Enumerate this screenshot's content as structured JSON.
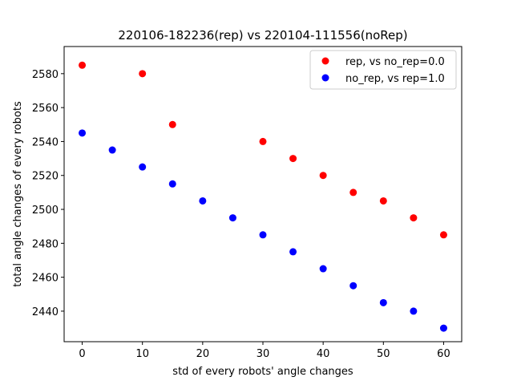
{
  "chart_data": {
    "type": "scatter",
    "title": "220106-182236(rep) vs 220104-111556(noRep)",
    "xlabel": "std of every robots' angle changes",
    "ylabel": "total angle changes of every robots",
    "xlim": [
      -3,
      63
    ],
    "ylim": [
      2422,
      2596
    ],
    "xticks": [
      0,
      10,
      20,
      30,
      40,
      50,
      60
    ],
    "yticks": [
      2440,
      2460,
      2480,
      2500,
      2520,
      2540,
      2560,
      2580
    ],
    "legend_position": "top-right",
    "grid": false,
    "series": [
      {
        "name": "rep, vs no_rep=0.0",
        "color": "#ff0000",
        "points": [
          {
            "x": 0,
            "y": 2585
          },
          {
            "x": 10,
            "y": 2580
          },
          {
            "x": 15,
            "y": 2550
          },
          {
            "x": 30,
            "y": 2540
          },
          {
            "x": 35,
            "y": 2530
          },
          {
            "x": 40,
            "y": 2520
          },
          {
            "x": 45,
            "y": 2510
          },
          {
            "x": 50,
            "y": 2505
          },
          {
            "x": 55,
            "y": 2495
          },
          {
            "x": 60,
            "y": 2485
          }
        ]
      },
      {
        "name": "no_rep, vs rep=1.0",
        "color": "#0000ff",
        "points": [
          {
            "x": 0,
            "y": 2545
          },
          {
            "x": 5,
            "y": 2535
          },
          {
            "x": 10,
            "y": 2525
          },
          {
            "x": 15,
            "y": 2515
          },
          {
            "x": 20,
            "y": 2505
          },
          {
            "x": 25,
            "y": 2495
          },
          {
            "x": 30,
            "y": 2485
          },
          {
            "x": 35,
            "y": 2475
          },
          {
            "x": 40,
            "y": 2465
          },
          {
            "x": 45,
            "y": 2455
          },
          {
            "x": 50,
            "y": 2445
          },
          {
            "x": 55,
            "y": 2440
          },
          {
            "x": 60,
            "y": 2430
          }
        ]
      }
    ]
  }
}
